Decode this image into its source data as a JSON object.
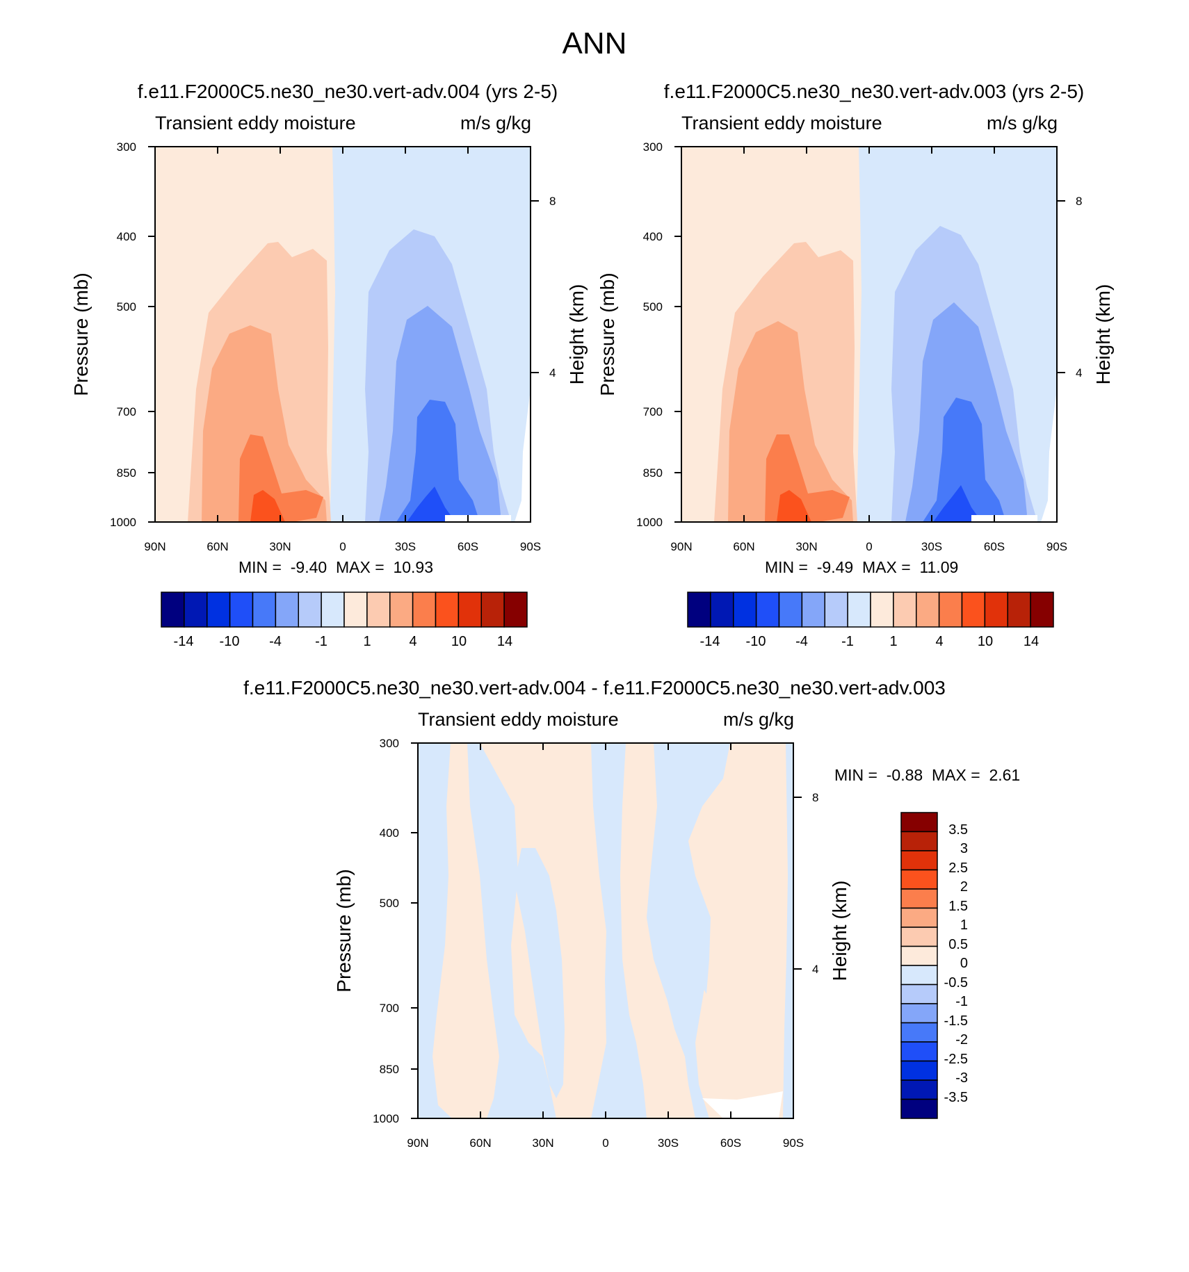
{
  "figure": {
    "title": "ANN"
  },
  "colors": {
    "primary_levels": [
      "#00007f",
      "#0018b4",
      "#0031e1",
      "#1f4ff8",
      "#4779f9",
      "#84a6f9",
      "#b6cbfa",
      "#d7e8fc",
      "#fdeadb",
      "#fccbb1",
      "#fbaa83",
      "#fb7e4c",
      "#fb521d",
      "#e1320a",
      "#b82208",
      "#860000"
    ],
    "diff_levels": [
      "#00007f",
      "#0018b4",
      "#0031e1",
      "#1f4ff8",
      "#4779f9",
      "#84a6f9",
      "#b6cbfa",
      "#d7e8fc",
      "#fdeadb",
      "#fccbb1",
      "#fbaa83",
      "#fb7e4c",
      "#fb521d",
      "#e1320a",
      "#b82208",
      "#860000"
    ]
  },
  "panels": [
    {
      "id": "left",
      "case_title": "f.e11.F2000C5.ne30_ne30.vert-adv.004 (yrs 2-5)",
      "left_string": "Transient eddy moisture",
      "right_string": "m/s g/kg",
      "ylabel": "Pressure (mb)",
      "ylabel_right": "Height (km)",
      "y_ticks": [
        "300",
        "400",
        "500",
        "700",
        "850",
        "1000"
      ],
      "y_right_ticks": [
        "8",
        "4"
      ],
      "x_ticks": [
        "90N",
        "60N",
        "30N",
        "0",
        "30S",
        "60S",
        "90S"
      ],
      "stats": {
        "min_label": "MIN =",
        "min": "-9.40",
        "max_label": "MAX =",
        "max": "10.93"
      },
      "colorbar_labels": [
        "-14",
        "-10",
        "-4",
        "-1",
        "1",
        "4",
        "10",
        "14"
      ]
    },
    {
      "id": "right",
      "case_title": "f.e11.F2000C5.ne30_ne30.vert-adv.003 (yrs 2-5)",
      "left_string": "Transient eddy moisture",
      "right_string": "m/s g/kg",
      "ylabel": "Pressure (mb)",
      "ylabel_right": "Height (km)",
      "y_ticks": [
        "300",
        "400",
        "500",
        "700",
        "850",
        "1000"
      ],
      "y_right_ticks": [
        "8",
        "4"
      ],
      "x_ticks": [
        "90N",
        "60N",
        "30N",
        "0",
        "30S",
        "60S",
        "90S"
      ],
      "stats": {
        "min_label": "MIN =",
        "min": "-9.49",
        "max_label": "MAX =",
        "max": "11.09"
      },
      "colorbar_labels": [
        "-14",
        "-10",
        "-4",
        "-1",
        "1",
        "4",
        "10",
        "14"
      ]
    },
    {
      "id": "diff",
      "case_title": "f.e11.F2000C5.ne30_ne30.vert-adv.004 - f.e11.F2000C5.ne30_ne30.vert-adv.003",
      "left_string": "Transient eddy moisture",
      "right_string": "m/s g/kg",
      "ylabel": "Pressure (mb)",
      "ylabel_right": "Height (km)",
      "y_ticks": [
        "300",
        "400",
        "500",
        "700",
        "850",
        "1000"
      ],
      "y_right_ticks": [
        "8",
        "4"
      ],
      "x_ticks": [
        "90N",
        "60N",
        "30N",
        "0",
        "30S",
        "60S",
        "90S"
      ],
      "stats": {
        "min_label": "MIN =",
        "min": "-0.88",
        "max_label": "MAX =",
        "max": "2.61"
      },
      "colorbar_labels": [
        "3.5",
        "3",
        "2.5",
        "2",
        "1.5",
        "1",
        "0.5",
        "0",
        "-0.5",
        "-1",
        "-1.5",
        "-2",
        "-2.5",
        "-3",
        "-3.5"
      ]
    }
  ],
  "chart_data": [
    {
      "type": "heatmap",
      "title": "f.e11.F2000C5.ne30_ne30.vert-adv.004 (yrs 2-5)",
      "xlabel": "",
      "ylabel": "Pressure (mb)",
      "x_categories": [
        "90N",
        "60N",
        "30N",
        "0",
        "30S",
        "60S",
        "90S"
      ],
      "y_levels": [
        300,
        400,
        500,
        700,
        850,
        1000
      ],
      "ylim": [
        1000,
        300
      ],
      "min": -9.4,
      "max": 10.93,
      "contour_levels": [
        -14,
        -12,
        -10,
        -7,
        -4,
        -2,
        -1,
        0,
        1,
        2,
        4,
        7,
        10,
        12,
        14
      ]
    },
    {
      "type": "heatmap",
      "title": "f.e11.F2000C5.ne30_ne30.vert-adv.003 (yrs 2-5)",
      "xlabel": "",
      "ylabel": "Pressure (mb)",
      "x_categories": [
        "90N",
        "60N",
        "30N",
        "0",
        "30S",
        "60S",
        "90S"
      ],
      "y_levels": [
        300,
        400,
        500,
        700,
        850,
        1000
      ],
      "ylim": [
        1000,
        300
      ],
      "min": -9.49,
      "max": 11.09,
      "contour_levels": [
        -14,
        -12,
        -10,
        -7,
        -4,
        -2,
        -1,
        0,
        1,
        2,
        4,
        7,
        10,
        12,
        14
      ]
    },
    {
      "type": "heatmap",
      "title": "f.e11.F2000C5.ne30_ne30.vert-adv.004 - f.e11.F2000C5.ne30_ne30.vert-adv.003",
      "xlabel": "",
      "ylabel": "Pressure (mb)",
      "x_categories": [
        "90N",
        "60N",
        "30N",
        "0",
        "30S",
        "60S",
        "90S"
      ],
      "y_levels": [
        300,
        400,
        500,
        700,
        850,
        1000
      ],
      "ylim": [
        1000,
        300
      ],
      "min": -0.88,
      "max": 2.61,
      "contour_levels": [
        -3.5,
        -3,
        -2.5,
        -2,
        -1.5,
        -1,
        -0.5,
        0,
        0.5,
        1,
        1.5,
        2,
        2.5,
        3,
        3.5
      ]
    }
  ]
}
